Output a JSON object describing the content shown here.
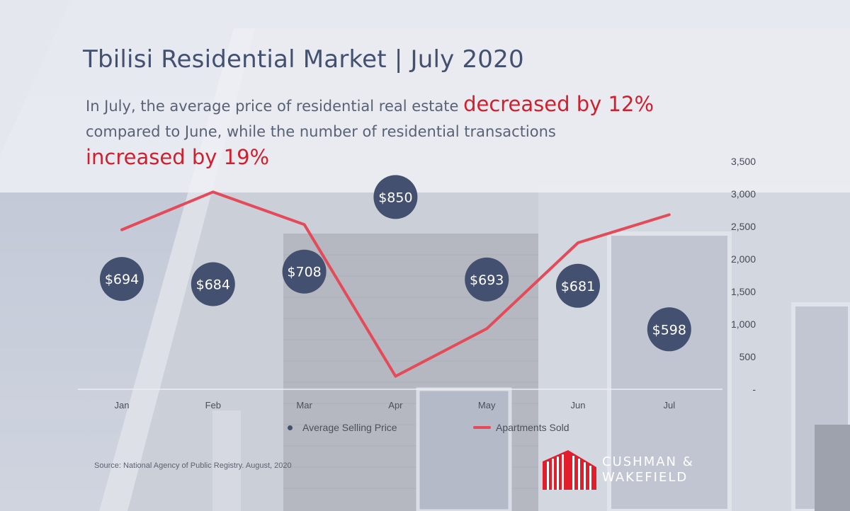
{
  "header": {
    "title": "Tbilisi Residential Market | July 2020",
    "intro_part1": "In July, the average price of residential real estate ",
    "intro_highlight1": "decreased by 12%",
    "intro_part2": "compared to June, while the number of residential transactions",
    "intro_highlight2": "increased by 19%"
  },
  "colors": {
    "title": "#43506f",
    "highlight": "#d0202e",
    "bubble": "#44506f",
    "line": "#e44a58"
  },
  "chart_data": {
    "type": "bubble-and-line",
    "categories": [
      "Jan",
      "Feb",
      "Mar",
      "Apr",
      "May",
      "Jun",
      "Jul"
    ],
    "series": [
      {
        "name": "Average Selling Price",
        "kind": "bubble",
        "values": [
          694,
          684,
          708,
          850,
          693,
          681,
          598
        ],
        "labels": [
          "$694",
          "$684",
          "$708",
          "$850",
          "$693",
          "$681",
          "$598"
        ],
        "axis": "hidden"
      },
      {
        "name": "Apartments Sold",
        "kind": "line",
        "values": [
          2450,
          3030,
          2530,
          200,
          930,
          2250,
          2680
        ],
        "axis": "right"
      }
    ],
    "y_right": {
      "min": 0,
      "max": 3500,
      "ticks": [
        {
          "value": 3500,
          "label": "3,500"
        },
        {
          "value": 3000,
          "label": "3,000"
        },
        {
          "value": 2500,
          "label": "2,500"
        },
        {
          "value": 2000,
          "label": "2,000"
        },
        {
          "value": 1500,
          "label": "1,500"
        },
        {
          "value": 1000,
          "label": "1,000"
        },
        {
          "value": 500,
          "label": "500"
        },
        {
          "value": 0,
          "label": "-"
        }
      ]
    },
    "legend": {
      "position": "bottom",
      "price_label": "Average Selling Price",
      "sold_label": "Apartments Sold"
    }
  },
  "footer": {
    "source": "Source: National Agency of Public Registry. August, 2020",
    "brand_line1": "CUSHMAN &",
    "brand_line2": "WAKEFIELD"
  }
}
